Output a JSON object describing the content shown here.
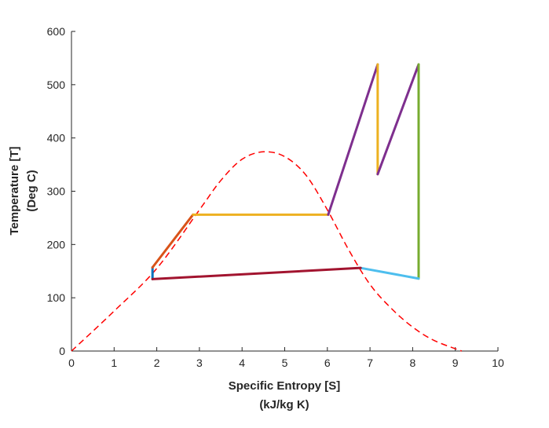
{
  "chart_data": {
    "type": "line",
    "title": "",
    "xlabel": [
      "Specific Entropy [S]",
      "(kJ/kg K)"
    ],
    "ylabel": [
      "Temperature [T]",
      "(Deg C)"
    ],
    "xlim": [
      0,
      10
    ],
    "ylim": [
      0,
      600
    ],
    "xticks": [
      0,
      1,
      2,
      3,
      4,
      5,
      6,
      7,
      8,
      9,
      10
    ],
    "yticks": [
      0,
      100,
      200,
      300,
      400,
      500,
      600
    ],
    "grid": false,
    "legend": "none",
    "saturation_dome": {
      "color": "#ff0000",
      "style": "dashed",
      "x": [
        0,
        1,
        2,
        3,
        3.5,
        4,
        4.5,
        5,
        5.5,
        6,
        6.5,
        7,
        7.5,
        8,
        8.5,
        9.15
      ],
      "y": [
        0,
        75,
        155,
        265,
        320,
        360,
        374,
        365,
        330,
        265,
        190,
        125,
        80,
        45,
        20,
        0
      ]
    },
    "series": [
      {
        "color": "#0072bd",
        "x": [
          1.9,
          1.9
        ],
        "y": [
          135,
          157
        ]
      },
      {
        "color": "#d95319",
        "x": [
          1.9,
          2.85
        ],
        "y": [
          157,
          256
        ]
      },
      {
        "color": "#edb120",
        "x": [
          2.85,
          6.02
        ],
        "y": [
          256,
          256
        ]
      },
      {
        "color": "#7e2f8e",
        "x": [
          6.02,
          7.18
        ],
        "y": [
          256,
          538
        ]
      },
      {
        "color": "#edb120",
        "x": [
          7.18,
          7.18
        ],
        "y": [
          538,
          332
        ]
      },
      {
        "color": "#7e2f8e",
        "x": [
          7.18,
          8.14
        ],
        "y": [
          332,
          538
        ]
      },
      {
        "color": "#77ac30",
        "x": [
          8.14,
          8.14
        ],
        "y": [
          538,
          136
        ]
      },
      {
        "color": "#4dbeee",
        "x": [
          8.14,
          6.78
        ],
        "y": [
          136,
          156
        ]
      },
      {
        "color": "#a2142f",
        "x": [
          6.78,
          1.9
        ],
        "y": [
          156,
          135
        ]
      }
    ]
  }
}
